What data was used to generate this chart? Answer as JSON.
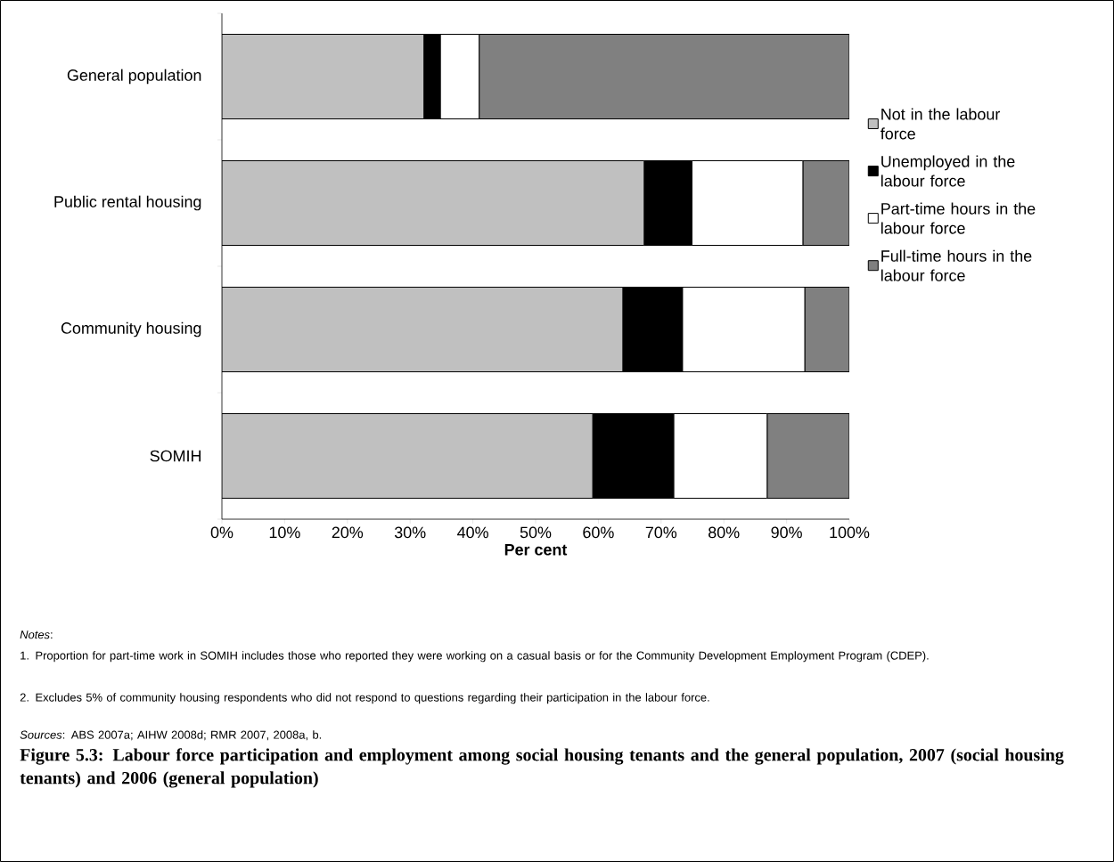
{
  "chart_data": {
    "type": "bar",
    "orientation": "horizontal",
    "stacked": true,
    "title": "Figure 5.3: Labour force participation and employment among social housing tenants and the general population, 2007 (social housing tenants) and 2006 (general population)",
    "xlabel": "Per cent",
    "categories": [
      "General population",
      "Public rental housing",
      "Community housing",
      "SOMIH"
    ],
    "series": [
      {
        "name": "Not in the labour force",
        "color": "#c0c0c0",
        "values": [
          32.2,
          67.3,
          63.9,
          59.1
        ]
      },
      {
        "name": "Unemployed in the labour force",
        "color": "#000000",
        "values": [
          2.6,
          7.6,
          9.5,
          12.9
        ]
      },
      {
        "name": "Part-time hours in the labour force",
        "color": "#ffffff",
        "values": [
          6.2,
          17.7,
          19.5,
          14.9
        ]
      },
      {
        "name": "Full-time hours in the labour force",
        "color": "#808080",
        "values": [
          59.0,
          7.4,
          7.1,
          13.1
        ]
      }
    ],
    "xlim": [
      0,
      100
    ],
    "xticks": [
      {
        "value": 0,
        "label": "0%"
      },
      {
        "value": 10,
        "label": "10%"
      },
      {
        "value": 20,
        "label": "20%"
      },
      {
        "value": 30,
        "label": "30%"
      },
      {
        "value": 40,
        "label": "40%"
      },
      {
        "value": 50,
        "label": "50%"
      },
      {
        "value": 60,
        "label": "60%"
      },
      {
        "value": 70,
        "label": "70%"
      },
      {
        "value": 80,
        "label": "80%"
      },
      {
        "value": 90,
        "label": "90%"
      },
      {
        "value": 100,
        "label": "100%"
      }
    ],
    "legend": "right",
    "annotations": [
      "*Notes*:",
      "1. Proportion for part-time work in SOMIH includes those who reported they were working on a casual basis or for the Community Development Employment Program (CDEP).",
      "2. Excludes 5% of community housing respondents who did not respond to questions regarding their participation in the labour force.",
      "*Sources*: ABS 2007a; AIHW 2008d; RMR 2007, 2008a, b."
    ]
  }
}
